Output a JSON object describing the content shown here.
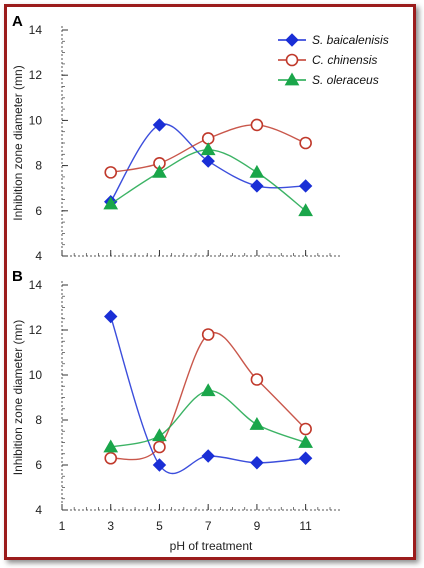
{
  "chart_data": [
    {
      "type": "line",
      "panel_label": "A",
      "ylabel": "Inhibition zone diameter (mn)",
      "xlabel": "",
      "ylim": [
        4,
        14
      ],
      "yticks": [
        4,
        6,
        8,
        10,
        12,
        14
      ],
      "xlim": [
        1,
        12
      ],
      "xticks": [
        1,
        3,
        5,
        7,
        9,
        11
      ],
      "x": [
        3,
        5,
        7,
        9,
        11
      ],
      "series": [
        {
          "name": "S. baicalenisis",
          "color": "#1a2fd6",
          "marker": "diamond",
          "values": [
            6.4,
            9.8,
            8.2,
            7.1,
            7.1
          ]
        },
        {
          "name": "C. chinensis",
          "color": "#c0392b",
          "marker": "circle",
          "values": [
            7.7,
            8.1,
            9.2,
            9.8,
            9.0
          ]
        },
        {
          "name": "S. oleraceus",
          "color": "#1aa64a",
          "marker": "triangle",
          "values": [
            6.3,
            7.7,
            8.7,
            7.7,
            6.0
          ]
        }
      ],
      "legend": "top-right",
      "grid": false
    },
    {
      "type": "line",
      "panel_label": "B",
      "ylabel": "Inhibition zone diameter (mn)",
      "xlabel": "pH of treatment",
      "ylim": [
        4,
        14
      ],
      "yticks": [
        4,
        6,
        8,
        10,
        12,
        14
      ],
      "xlim": [
        1,
        12
      ],
      "xticks": [
        1,
        3,
        5,
        7,
        9,
        11
      ],
      "x": [
        3,
        5,
        7,
        9,
        11
      ],
      "series": [
        {
          "name": "S. baicalenisis",
          "color": "#1a2fd6",
          "marker": "diamond",
          "values": [
            12.6,
            6.0,
            6.4,
            6.1,
            6.3
          ]
        },
        {
          "name": "C. chinensis",
          "color": "#c0392b",
          "marker": "circle",
          "values": [
            6.3,
            6.8,
            11.8,
            9.8,
            7.6
          ]
        },
        {
          "name": "S. oleraceus",
          "color": "#1aa64a",
          "marker": "triangle",
          "values": [
            6.8,
            7.3,
            9.3,
            7.8,
            7.0
          ]
        }
      ],
      "legend": "none",
      "grid": false
    }
  ]
}
